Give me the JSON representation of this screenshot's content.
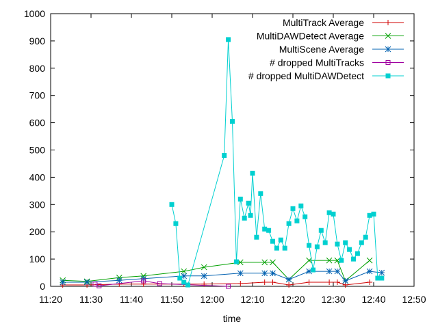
{
  "chart_data": {
    "type": "line",
    "title": "",
    "xlabel": "time",
    "ylabel": "",
    "ylim": [
      0,
      1000
    ],
    "xlim": [
      "11:20",
      "12:50"
    ],
    "x_ticks": [
      "11:20",
      "11:30",
      "11:40",
      "11:50",
      "12:00",
      "12:10",
      "12:20",
      "12:30",
      "12:40",
      "12:50"
    ],
    "y_ticks": [
      "0",
      "100",
      "200",
      "300",
      "400",
      "500",
      "600",
      "700",
      "800",
      "900",
      "1000"
    ],
    "grid": false,
    "legend_position": "top-right",
    "series": [
      {
        "name": "MultiTrack Average",
        "color": "#d00000",
        "marker": "plus",
        "x": [
          "11:23",
          "11:29",
          "11:37",
          "11:43",
          "11:53",
          "11:58",
          "12:07",
          "12:13",
          "12:15",
          "12:19",
          "12:24",
          "12:29",
          "12:31",
          "12:33",
          "12:39"
        ],
        "values": [
          5,
          5,
          8,
          8,
          8,
          8,
          10,
          15,
          15,
          5,
          15,
          15,
          15,
          5,
          15
        ]
      },
      {
        "name": "MultiDAWDetect Average",
        "color": "#00a000",
        "marker": "x",
        "x": [
          "11:23",
          "11:29",
          "11:37",
          "11:43",
          "11:53",
          "11:58",
          "12:07",
          "12:13",
          "12:15",
          "12:19",
          "12:24",
          "12:29",
          "12:31",
          "12:33",
          "12:39"
        ],
        "values": [
          22,
          18,
          32,
          38,
          55,
          70,
          88,
          88,
          88,
          25,
          95,
          95,
          95,
          20,
          95
        ]
      },
      {
        "name": "MultiScene Average",
        "color": "#0060b0",
        "marker": "star",
        "x": [
          "11:23",
          "11:29",
          "11:37",
          "11:43",
          "11:53",
          "11:58",
          "12:07",
          "12:13",
          "12:15",
          "12:19",
          "12:24",
          "12:29",
          "12:31",
          "12:33",
          "12:39",
          "12:42"
        ],
        "values": [
          15,
          15,
          22,
          28,
          38,
          38,
          48,
          48,
          48,
          25,
          55,
          55,
          55,
          20,
          55,
          50
        ]
      },
      {
        "name": "# dropped MultiTracks",
        "color": "#a000a0",
        "marker": "box",
        "x": [
          "11:31",
          "11:32",
          "11:43",
          "11:47",
          "12:04"
        ],
        "values": [
          8,
          2,
          20,
          10,
          0
        ]
      },
      {
        "name": "# dropped MultiDAWDetect",
        "color": "#00d0d0",
        "marker": "filled-box",
        "x": [
          "11:50",
          "11:51",
          "11:52",
          "11:53",
          "11:54",
          "12:03",
          "12:04",
          "12:05",
          "12:06",
          "12:07",
          "12:08",
          "12:09",
          "12:09.5",
          "12:10",
          "12:11",
          "12:12",
          "12:13",
          "12:14",
          "12:15",
          "12:16",
          "12:17",
          "12:18",
          "12:19",
          "12:20",
          "12:21",
          "12:22",
          "12:23",
          "12:24",
          "12:25",
          "12:26",
          "12:27",
          "12:28",
          "12:29",
          "12:30",
          "12:31",
          "12:32",
          "12:33",
          "12:34",
          "12:35",
          "12:36",
          "12:37",
          "12:38",
          "12:39",
          "12:40",
          "12:41",
          "12:42"
        ],
        "values": [
          300,
          230,
          30,
          15,
          5,
          480,
          905,
          605,
          90,
          320,
          250,
          305,
          260,
          415,
          180,
          340,
          210,
          205,
          165,
          140,
          170,
          140,
          230,
          285,
          240,
          295,
          255,
          150,
          60,
          145,
          205,
          160,
          270,
          265,
          155,
          95,
          160,
          135,
          100,
          120,
          160,
          180,
          260,
          265,
          30,
          30
        ]
      }
    ]
  }
}
